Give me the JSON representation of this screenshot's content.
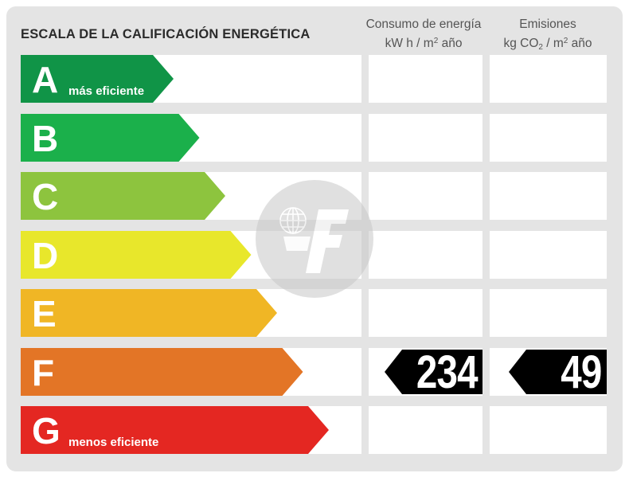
{
  "title": "ESCALA DE LA CALIFICACIÓN ENERGÉTICA",
  "columns": {
    "consumo": {
      "line1": "Consumo de energía",
      "line2_pre": "kW h  / m",
      "line2_sup": "2",
      "line2_post": " año"
    },
    "emisiones": {
      "line1": "Emisiones",
      "line2_pre": "kg CO",
      "line2_sub": "2",
      "line2_mid": "  / m",
      "line2_sup": "2",
      "line2_post": " año"
    }
  },
  "ratings": [
    {
      "letter": "A",
      "sublabel": "más eficiente",
      "color": "#109447"
    },
    {
      "letter": "B",
      "sublabel": "",
      "color": "#1bb04b"
    },
    {
      "letter": "C",
      "sublabel": "",
      "color": "#8dc43e"
    },
    {
      "letter": "D",
      "sublabel": "",
      "color": "#e8e72b"
    },
    {
      "letter": "E",
      "sublabel": "",
      "color": "#f0b625"
    },
    {
      "letter": "F",
      "sublabel": "",
      "color": "#e37526"
    },
    {
      "letter": "G",
      "sublabel": "menos eficiente",
      "color": "#e42722"
    }
  ],
  "current": {
    "rating": "F",
    "consumo": "234",
    "emisiones": "49"
  }
}
